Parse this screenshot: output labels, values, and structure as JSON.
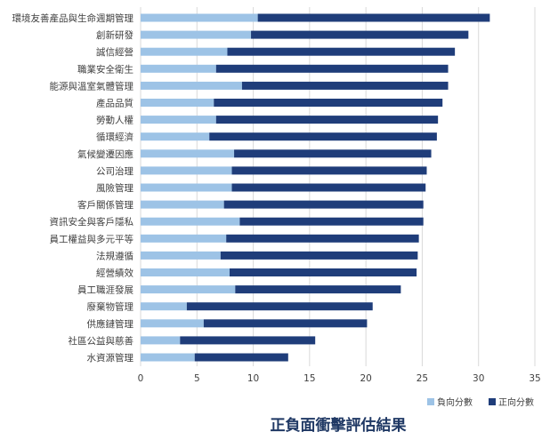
{
  "chart_data": {
    "type": "bar",
    "orientation": "horizontal",
    "stacked": true,
    "title": "正負面衝擊評估結果",
    "xlabel": "",
    "ylabel": "",
    "xlim": [
      0,
      35
    ],
    "xticks": [
      0,
      5,
      10,
      15,
      20,
      25,
      30,
      35
    ],
    "grid": true,
    "legend_position": "bottom-right",
    "categories": [
      "環境友善產品與生命週期管理",
      "創新研發",
      "誠信經營",
      "職業安全衛生",
      "能源與溫室氣體管理",
      "產品品質",
      "勞動人權",
      "循環經濟",
      "氣候變遷因應",
      "公司治理",
      "風險管理",
      "客戶關係管理",
      "資訊安全與客戶隱私",
      "員工權益與多元平等",
      "法規遵循",
      "經營績效",
      "員工職涯發展",
      "廢棄物管理",
      "供應鏈管理",
      "社區公益與慈善",
      "水資源管理"
    ],
    "series": [
      {
        "name": "負向分數",
        "color": "#9dc3e6",
        "values": [
          10.4,
          9.8,
          7.7,
          6.7,
          9.0,
          6.5,
          6.7,
          6.1,
          8.3,
          8.1,
          8.1,
          7.4,
          8.8,
          7.6,
          7.1,
          7.9,
          8.4,
          4.1,
          5.6,
          3.5,
          4.8
        ]
      },
      {
        "name": "正向分數",
        "color": "#1f3d7a",
        "values": [
          20.6,
          19.3,
          20.2,
          20.6,
          18.3,
          20.3,
          19.7,
          20.2,
          17.5,
          17.3,
          17.2,
          17.7,
          16.3,
          17.1,
          17.5,
          16.6,
          14.7,
          16.5,
          14.5,
          12.0,
          8.3
        ]
      }
    ]
  }
}
